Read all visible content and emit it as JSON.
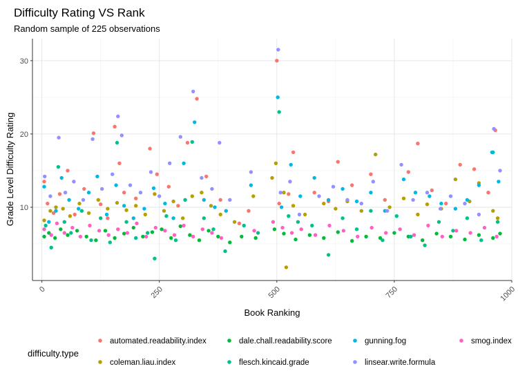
{
  "chart_data": {
    "type": "scatter",
    "title": "Difficulty Rating VS Rank",
    "subtitle": "Random sample of 225 observations",
    "xlabel": "Book Ranking",
    "ylabel": "Grade Level Difficulty Rating",
    "xlim": [
      -20,
      1000
    ],
    "ylim": [
      0,
      33
    ],
    "x_ticks": [
      0,
      250,
      500,
      750,
      1000
    ],
    "x_tick_labels": [
      "0",
      "250",
      "500",
      "750",
      "1000"
    ],
    "y_ticks": [
      10,
      20,
      30
    ],
    "y_tick_labels": [
      "10",
      "20",
      "30"
    ],
    "grid": true,
    "legend_position": "bottom",
    "legend_title": "difficulty.type",
    "series": [
      {
        "name": "automated.readability.index",
        "color": "#F8766D",
        "points": [
          [
            5,
            13.5
          ],
          [
            12,
            10.5
          ],
          [
            25,
            9.2
          ],
          [
            38,
            11.8
          ],
          [
            55,
            15.0
          ],
          [
            70,
            9.0
          ],
          [
            90,
            12.5
          ],
          [
            110,
            20.1
          ],
          [
            125,
            10.4
          ],
          [
            140,
            8.5
          ],
          [
            155,
            21.0
          ],
          [
            165,
            16.0
          ],
          [
            175,
            12.0
          ],
          [
            200,
            11.2
          ],
          [
            230,
            18.0
          ],
          [
            245,
            14.5
          ],
          [
            270,
            12.8
          ],
          [
            290,
            10.2
          ],
          [
            310,
            18.8
          ],
          [
            330,
            24.8
          ],
          [
            350,
            14.2
          ],
          [
            380,
            11.0
          ],
          [
            420,
            7.8
          ],
          [
            440,
            9.5
          ],
          [
            500,
            30.0
          ],
          [
            505,
            10.5
          ],
          [
            525,
            11.8
          ],
          [
            535,
            17.5
          ],
          [
            580,
            12.0
          ],
          [
            610,
            10.8
          ],
          [
            630,
            16.2
          ],
          [
            660,
            13.0
          ],
          [
            700,
            14.5
          ],
          [
            730,
            11.0
          ],
          [
            780,
            14.8
          ],
          [
            800,
            18.7
          ],
          [
            830,
            12.3
          ],
          [
            860,
            10.5
          ],
          [
            890,
            15.8
          ],
          [
            920,
            15.2
          ],
          [
            950,
            12.0
          ],
          [
            965,
            20.5
          ]
        ]
      },
      {
        "name": "coleman.liau.index",
        "color": "#B79F00",
        "points": [
          [
            5,
            8.2
          ],
          [
            18,
            9.5
          ],
          [
            30,
            10.0
          ],
          [
            45,
            9.8
          ],
          [
            60,
            8.8
          ],
          [
            80,
            10.5
          ],
          [
            100,
            9.2
          ],
          [
            120,
            11.0
          ],
          [
            140,
            9.8
          ],
          [
            160,
            10.6
          ],
          [
            180,
            9.6
          ],
          [
            200,
            10.2
          ],
          [
            220,
            9.0
          ],
          [
            240,
            11.8
          ],
          [
            260,
            9.5
          ],
          [
            280,
            10.8
          ],
          [
            300,
            8.5
          ],
          [
            320,
            11.5
          ],
          [
            340,
            12.0
          ],
          [
            360,
            10.2
          ],
          [
            380,
            9.0
          ],
          [
            410,
            8.0
          ],
          [
            450,
            11.5
          ],
          [
            490,
            14.0
          ],
          [
            498,
            16.0
          ],
          [
            515,
            12.0
          ],
          [
            520,
            1.8
          ],
          [
            535,
            10.2
          ],
          [
            560,
            9.0
          ],
          [
            600,
            10.5
          ],
          [
            625,
            9.8
          ],
          [
            650,
            10.8
          ],
          [
            680,
            9.5
          ],
          [
            710,
            17.2
          ],
          [
            740,
            10.0
          ],
          [
            770,
            11.2
          ],
          [
            800,
            9.0
          ],
          [
            820,
            10.4
          ],
          [
            850,
            9.8
          ],
          [
            880,
            13.8
          ],
          [
            910,
            10.8
          ],
          [
            930,
            13.3
          ],
          [
            960,
            9.5
          ],
          [
            970,
            8.5
          ]
        ]
      },
      {
        "name": "dale.chall.readability.score",
        "color": "#00BA38",
        "points": [
          [
            5,
            6.0
          ],
          [
            15,
            6.5
          ],
          [
            28,
            5.8
          ],
          [
            40,
            7.0
          ],
          [
            55,
            6.2
          ],
          [
            75,
            6.8
          ],
          [
            95,
            6.0
          ],
          [
            115,
            5.5
          ],
          [
            135,
            6.8
          ],
          [
            155,
            5.8
          ],
          [
            175,
            6.4
          ],
          [
            195,
            7.2
          ],
          [
            215,
            6.0
          ],
          [
            235,
            6.6
          ],
          [
            255,
            7.0
          ],
          [
            275,
            5.8
          ],
          [
            295,
            7.4
          ],
          [
            315,
            6.2
          ],
          [
            335,
            5.5
          ],
          [
            355,
            6.8
          ],
          [
            375,
            6.0
          ],
          [
            400,
            5.2
          ],
          [
            425,
            6.0
          ],
          [
            455,
            5.8
          ],
          [
            495,
            7.0
          ],
          [
            515,
            6.4
          ],
          [
            540,
            5.6
          ],
          [
            570,
            6.2
          ],
          [
            600,
            5.8
          ],
          [
            630,
            6.6
          ],
          [
            660,
            5.4
          ],
          [
            690,
            6.0
          ],
          [
            720,
            5.8
          ],
          [
            750,
            6.5
          ],
          [
            780,
            6.0
          ],
          [
            810,
            5.5
          ],
          [
            840,
            6.4
          ],
          [
            870,
            6.0
          ],
          [
            900,
            5.6
          ],
          [
            930,
            6.2
          ],
          [
            960,
            5.8
          ],
          [
            975,
            6.4
          ]
        ]
      },
      {
        "name": "flesch.kincaid.grade",
        "color": "#00C08B",
        "points": [
          [
            8,
            7.5
          ],
          [
            20,
            4.5
          ],
          [
            35,
            15.5
          ],
          [
            48,
            8.0
          ],
          [
            62,
            6.5
          ],
          [
            85,
            9.5
          ],
          [
            105,
            5.5
          ],
          [
            125,
            8.5
          ],
          [
            145,
            5.2
          ],
          [
            160,
            18.8
          ],
          [
            180,
            8.0
          ],
          [
            200,
            5.8
          ],
          [
            225,
            6.5
          ],
          [
            240,
            3.0
          ],
          [
            265,
            8.8
          ],
          [
            285,
            5.5
          ],
          [
            305,
            11.0
          ],
          [
            320,
            18.9
          ],
          [
            345,
            8.5
          ],
          [
            365,
            7.0
          ],
          [
            390,
            4.0
          ],
          [
            430,
            7.5
          ],
          [
            460,
            6.5
          ],
          [
            505,
            23.0
          ],
          [
            525,
            8.8
          ],
          [
            545,
            8.0
          ],
          [
            575,
            7.5
          ],
          [
            610,
            3.5
          ],
          [
            640,
            8.5
          ],
          [
            670,
            7.0
          ],
          [
            700,
            9.5
          ],
          [
            725,
            5.5
          ],
          [
            755,
            8.8
          ],
          [
            785,
            6.0
          ],
          [
            815,
            4.8
          ],
          [
            845,
            8.0
          ],
          [
            875,
            6.8
          ],
          [
            905,
            8.5
          ],
          [
            935,
            5.5
          ],
          [
            960,
            17.5
          ],
          [
            970,
            8.0
          ]
        ]
      },
      {
        "name": "gunning.fog",
        "color": "#00B9E3",
        "points": [
          [
            5,
            12.8
          ],
          [
            15,
            8.0
          ],
          [
            30,
            9.5
          ],
          [
            42,
            14.0
          ],
          [
            58,
            11.0
          ],
          [
            78,
            9.8
          ],
          [
            100,
            12.0
          ],
          [
            118,
            14.2
          ],
          [
            138,
            9.0
          ],
          [
            158,
            13.0
          ],
          [
            175,
            10.2
          ],
          [
            195,
            8.5
          ],
          [
            218,
            9.8
          ],
          [
            238,
            12.6
          ],
          [
            262,
            10.5
          ],
          [
            280,
            8.5
          ],
          [
            302,
            16.0
          ],
          [
            325,
            21.6
          ],
          [
            345,
            11.0
          ],
          [
            368,
            10.0
          ],
          [
            392,
            9.5
          ],
          [
            445,
            13.0
          ],
          [
            502,
            25.0
          ],
          [
            510,
            10.0
          ],
          [
            530,
            15.8
          ],
          [
            550,
            11.5
          ],
          [
            580,
            14.0
          ],
          [
            610,
            11.0
          ],
          [
            640,
            12.5
          ],
          [
            670,
            10.8
          ],
          [
            700,
            12.0
          ],
          [
            730,
            9.5
          ],
          [
            770,
            13.8
          ],
          [
            795,
            12.0
          ],
          [
            825,
            11.5
          ],
          [
            850,
            10.5
          ],
          [
            880,
            9.8
          ],
          [
            905,
            11.0
          ],
          [
            930,
            13.0
          ],
          [
            958,
            17.5
          ],
          [
            972,
            13.5
          ]
        ]
      },
      {
        "name": "linsear.write.formula",
        "color": "#9590FF",
        "points": [
          [
            6,
            14.2
          ],
          [
            18,
            11.5
          ],
          [
            36,
            19.5
          ],
          [
            50,
            12.0
          ],
          [
            68,
            13.5
          ],
          [
            88,
            11.0
          ],
          [
            108,
            19.3
          ],
          [
            128,
            12.5
          ],
          [
            150,
            14.5
          ],
          [
            162,
            22.4
          ],
          [
            170,
            19.8
          ],
          [
            188,
            13.0
          ],
          [
            210,
            12.0
          ],
          [
            232,
            14.8
          ],
          [
            250,
            11.5
          ],
          [
            272,
            16.0
          ],
          [
            295,
            19.6
          ],
          [
            322,
            25.8
          ],
          [
            340,
            14.0
          ],
          [
            362,
            12.5
          ],
          [
            378,
            18.8
          ],
          [
            400,
            11.0
          ],
          [
            445,
            14.8
          ],
          [
            503,
            31.5
          ],
          [
            508,
            12.0
          ],
          [
            528,
            13.5
          ],
          [
            548,
            9.0
          ],
          [
            590,
            11.5
          ],
          [
            620,
            12.8
          ],
          [
            650,
            11.0
          ],
          [
            680,
            10.5
          ],
          [
            705,
            13.5
          ],
          [
            735,
            9.5
          ],
          [
            765,
            15.8
          ],
          [
            790,
            11.0
          ],
          [
            820,
            12.0
          ],
          [
            848,
            9.8
          ],
          [
            870,
            11.5
          ],
          [
            900,
            10.5
          ],
          [
            930,
            9.0
          ],
          [
            962,
            20.7
          ],
          [
            975,
            15.0
          ]
        ]
      },
      {
        "name": "smog.index",
        "color": "#FF61C3",
        "points": [
          [
            5,
            7.0
          ],
          [
            20,
            6.2
          ],
          [
            32,
            7.8
          ],
          [
            48,
            6.5
          ],
          [
            65,
            7.2
          ],
          [
            82,
            6.0
          ],
          [
            102,
            7.5
          ],
          [
            122,
            6.8
          ],
          [
            142,
            6.2
          ],
          [
            162,
            7.0
          ],
          [
            182,
            6.5
          ],
          [
            202,
            7.8
          ],
          [
            222,
            6.0
          ],
          [
            242,
            7.2
          ],
          [
            262,
            6.8
          ],
          [
            282,
            6.2
          ],
          [
            302,
            7.5
          ],
          [
            322,
            6.0
          ],
          [
            342,
            7.0
          ],
          [
            362,
            6.5
          ],
          [
            382,
            5.8
          ],
          [
            452,
            6.8
          ],
          [
            492,
            8.0
          ],
          [
            512,
            7.2
          ],
          [
            532,
            6.5
          ],
          [
            552,
            7.0
          ],
          [
            582,
            6.2
          ],
          [
            612,
            7.5
          ],
          [
            642,
            6.8
          ],
          [
            672,
            6.0
          ],
          [
            702,
            7.2
          ],
          [
            732,
            6.5
          ],
          [
            762,
            7.0
          ],
          [
            792,
            6.2
          ],
          [
            822,
            7.5
          ],
          [
            852,
            6.0
          ],
          [
            882,
            6.8
          ],
          [
            912,
            6.5
          ],
          [
            942,
            7.2
          ],
          [
            968,
            6.0
          ]
        ]
      }
    ]
  }
}
